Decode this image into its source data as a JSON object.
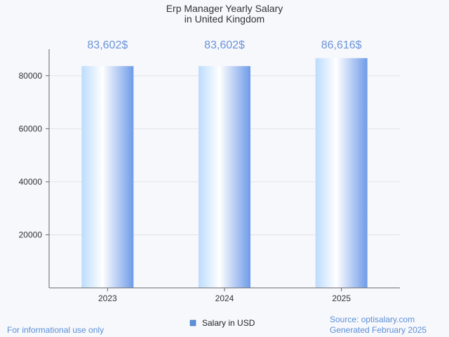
{
  "chart_data": {
    "type": "bar",
    "title": [
      "Erp Manager Yearly Salary",
      "in United Kingdom"
    ],
    "categories": [
      "2023",
      "2024",
      "2025"
    ],
    "series": [
      {
        "name": "Salary in USD",
        "values": [
          83602,
          83602,
          86616
        ],
        "data_labels": [
          "83,602$",
          "83,602$",
          "86,616$"
        ]
      }
    ],
    "ylim": [
      0,
      90000
    ],
    "yticks": [
      20000,
      40000,
      60000,
      80000
    ],
    "ytick_labels": [
      "20000",
      "40000",
      "60000",
      "80000"
    ],
    "grid": true,
    "legend_position": "bottom-center",
    "colors": {
      "bar_light": "#ffffff",
      "bar_mid": "#bcdcfd",
      "bar_dark": "#6e9be8",
      "data_label": "#6b93d6",
      "grid": "#e3e3e3",
      "axis": "#666666",
      "legend_swatch": "#5b8fd6"
    }
  },
  "footer": {
    "left": "For informational use only",
    "source": "Source: optisalary.com",
    "generated": "Generated February 2025"
  }
}
